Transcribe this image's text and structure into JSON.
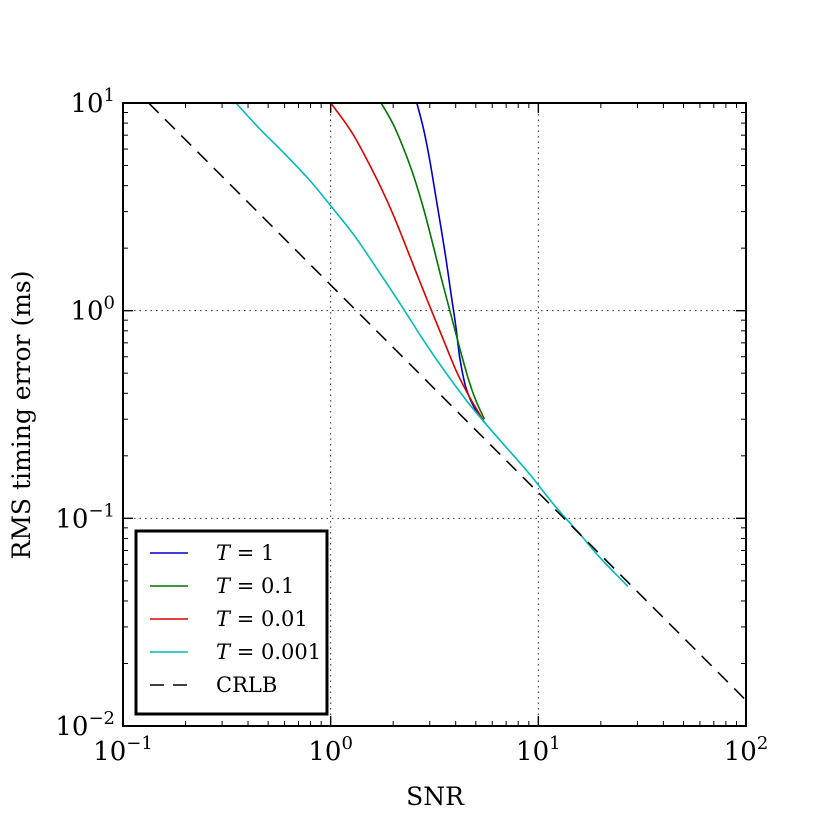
{
  "chart_data": {
    "type": "line",
    "xscale": "log",
    "yscale": "log",
    "xlim": [
      0.1,
      100
    ],
    "ylim": [
      0.01,
      10
    ],
    "grid": true,
    "xlabel": "SNR",
    "ylabel": "RMS timing error (ms)",
    "x_ticks": [
      {
        "value": 0.1,
        "base": "10",
        "exp": "−1"
      },
      {
        "value": 1,
        "base": "10",
        "exp": "0"
      },
      {
        "value": 10,
        "base": "10",
        "exp": "1"
      },
      {
        "value": 100,
        "base": "10",
        "exp": "2"
      }
    ],
    "y_ticks": [
      {
        "value": 0.01,
        "base": "10",
        "exp": "−2"
      },
      {
        "value": 0.1,
        "base": "10",
        "exp": "−1"
      },
      {
        "value": 1,
        "base": "10",
        "exp": "0"
      },
      {
        "value": 10,
        "base": "10",
        "exp": "1"
      }
    ],
    "legend_position": "lower-left",
    "series": [
      {
        "name": "T = 1",
        "name_var": "T",
        "name_rest": " = 1",
        "color": "#0000cc",
        "dash": "solid",
        "x": [
          2.6,
          2.8,
          3.0,
          3.2,
          3.4,
          3.6,
          3.8,
          4.0,
          4.2,
          4.5,
          5.0,
          5.5
        ],
        "y": [
          10.0,
          7.5,
          5.3,
          3.6,
          2.5,
          1.75,
          1.2,
          0.85,
          0.58,
          0.42,
          0.33,
          0.29
        ]
      },
      {
        "name": "T = 0.1",
        "name_var": "T",
        "name_rest": " = 0.1",
        "color": "#007700",
        "dash": "solid",
        "x": [
          1.75,
          2.0,
          2.25,
          2.5,
          2.8,
          3.1,
          3.4,
          3.8,
          4.2,
          4.6,
          5.0,
          5.5
        ],
        "y": [
          10.0,
          7.9,
          6.0,
          4.5,
          3.1,
          2.1,
          1.45,
          0.95,
          0.65,
          0.47,
          0.37,
          0.3
        ]
      },
      {
        "name": "T = 0.01",
        "name_var": "T",
        "name_rest": " = 0.01",
        "color": "#dd0000",
        "dash": "solid",
        "x": [
          1.0,
          1.15,
          1.3,
          1.5,
          1.75,
          2.0,
          2.3,
          2.6,
          3.0,
          3.5,
          4.0,
          4.5,
          5.0,
          5.5
        ],
        "y": [
          10.0,
          8.3,
          6.9,
          5.3,
          3.9,
          2.9,
          2.05,
          1.5,
          1.05,
          0.72,
          0.52,
          0.41,
          0.34,
          0.29
        ]
      },
      {
        "name": "T = 0.001",
        "name_var": "T",
        "name_rest": " = 0.001",
        "color": "#00bbbb",
        "dash": "solid",
        "x": [
          0.35,
          0.45,
          0.6,
          0.8,
          1.0,
          1.3,
          1.7,
          2.2,
          2.8,
          3.5,
          4.5,
          5.5,
          7.0,
          9.0,
          12.0,
          16.0,
          20.0,
          27.0
        ],
        "y": [
          10.0,
          7.6,
          5.7,
          4.2,
          3.2,
          2.3,
          1.55,
          1.05,
          0.72,
          0.52,
          0.37,
          0.29,
          0.22,
          0.165,
          0.115,
          0.083,
          0.064,
          0.047
        ]
      },
      {
        "name": "CRLB",
        "color": "#000000",
        "dash": "dashed",
        "x": [
          0.133,
          100
        ],
        "y": [
          10.0,
          0.0133
        ]
      }
    ]
  }
}
